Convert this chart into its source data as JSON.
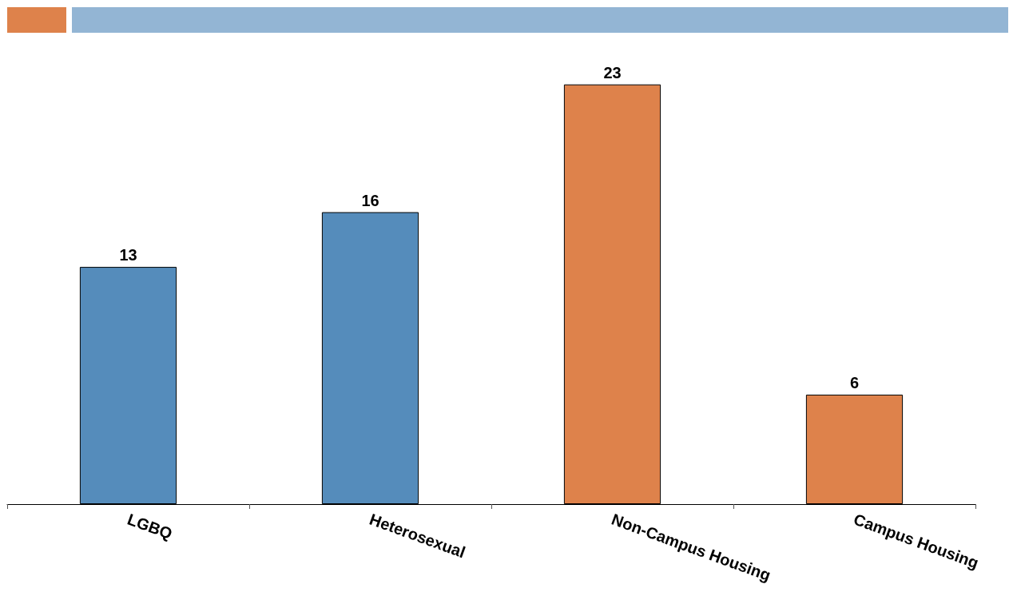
{
  "chart_data": {
    "type": "bar",
    "categories": [
      "LGBQ",
      "Heterosexual",
      "Non-Campus Housing",
      "Campus Housing"
    ],
    "values": [
      13,
      16,
      23,
      6
    ],
    "colors": [
      "#558cbb",
      "#558cbb",
      "#de824b",
      "#de824b"
    ],
    "data_labels": true
  }
}
